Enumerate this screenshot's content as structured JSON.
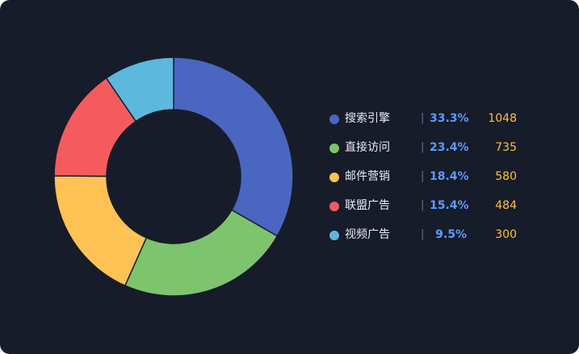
{
  "chart_data": {
    "type": "pie",
    "variant": "donut",
    "legend_position": "right",
    "title": "",
    "series": [
      {
        "name": "搜索引擎",
        "value": 1048,
        "percent_label": "33.3%",
        "color": "#4a66c0"
      },
      {
        "name": "直接访问",
        "value": 735,
        "percent_label": "23.4%",
        "color": "#7ec46c"
      },
      {
        "name": "邮件营销",
        "value": 580,
        "percent_label": "18.4%",
        "color": "#ffc254"
      },
      {
        "name": "联盟广告",
        "value": 484,
        "percent_label": "15.4%",
        "color": "#f45b5e"
      },
      {
        "name": "视频广告",
        "value": 300,
        "percent_label": "9.5%",
        "color": "#5cb8dc"
      }
    ],
    "separator": "|"
  },
  "colors": {
    "background": "#171c2a",
    "percent_text": "#5b9bff",
    "value_text": "#ffbf3c",
    "name_text": "#e6ebf5"
  }
}
